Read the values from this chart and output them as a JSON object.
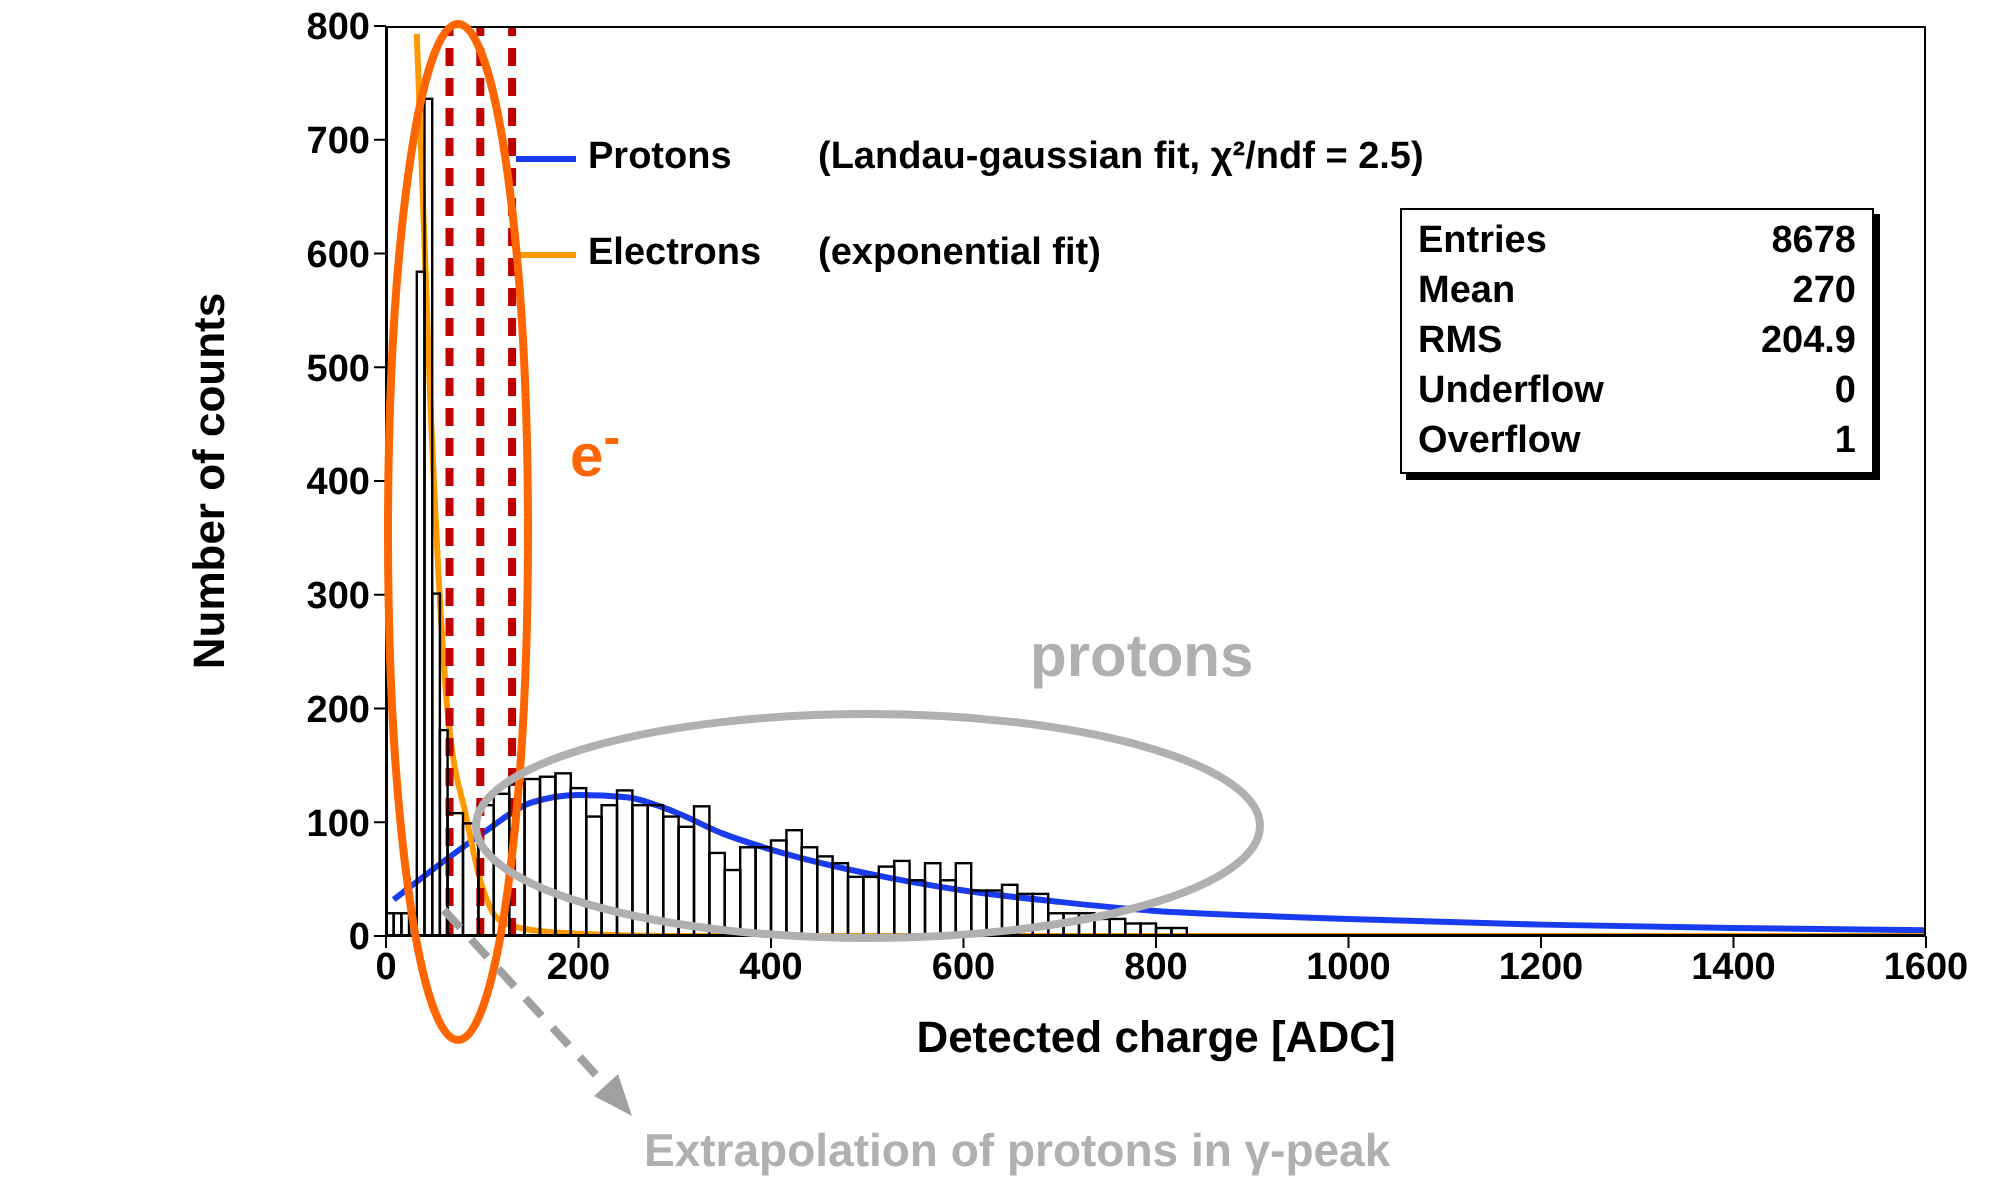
{
  "chart_data": {
    "type": "histogram",
    "xlabel": "Detected charge [ADC]",
    "ylabel": "Number of counts",
    "bins": [
      0,
      8,
      16,
      24,
      32,
      40,
      48,
      56,
      64,
      80,
      96,
      112,
      128,
      144,
      160,
      176,
      192,
      208,
      224,
      240,
      256,
      272,
      288,
      304,
      320,
      336,
      352,
      368,
      384,
      400,
      416,
      432,
      448,
      464,
      480,
      496,
      512,
      528,
      544,
      560,
      576,
      592,
      608,
      624,
      640,
      656,
      672,
      688,
      704,
      720,
      736,
      752,
      768,
      784,
      800,
      816,
      832
    ],
    "values": [
      20,
      20,
      20,
      20,
      584,
      736,
      301,
      181,
      108,
      99,
      115,
      125,
      134,
      138,
      140,
      143,
      130,
      105,
      115,
      128,
      115,
      115,
      105,
      96,
      114,
      73,
      58,
      78,
      78,
      84,
      93,
      78,
      70,
      64,
      52,
      52,
      61,
      66,
      49,
      64,
      49,
      64,
      40,
      40,
      45,
      37,
      37,
      20,
      20,
      20,
      15,
      15,
      11,
      11,
      7,
      7
    ],
    "color": "#000000",
    "series": [
      {
        "name": "Protons",
        "type": "line",
        "color": "#1a3cf0",
        "x": [
          8,
          100,
          150,
          200,
          250,
          300,
          350,
          400,
          500,
          600,
          700,
          800,
          900,
          1000,
          1200,
          1400,
          1600
        ],
        "values": [
          32,
          90,
          117,
          124,
          122,
          109,
          90,
          76,
          55,
          40,
          30,
          22,
          18,
          15,
          10,
          7,
          5
        ]
      },
      {
        "name": "Electrons",
        "type": "line",
        "color": "#ff9900",
        "x": [
          32,
          46,
          63,
          84,
          98,
          118,
          153,
          200,
          300,
          1600
        ],
        "values": [
          793,
          471,
          207,
          102,
          49,
          14,
          5,
          2,
          0,
          0
        ]
      }
    ],
    "xlim": [
      0,
      1600
    ],
    "xticks": [
      0,
      200,
      400,
      600,
      800,
      1000,
      1200,
      1400,
      1600
    ],
    "ylim": [
      0,
      800
    ],
    "yticks": [
      0,
      100,
      200,
      300,
      400,
      500,
      600,
      700,
      800
    ],
    "ref_lines": [
      {
        "axis": "x",
        "value": 66,
        "color": "#c00000",
        "line_style": "dashed"
      },
      {
        "axis": "x",
        "value": 98,
        "color": "#c00000",
        "line_style": "dashed"
      },
      {
        "axis": "x",
        "value": 131,
        "color": "#c00000",
        "line_style": "dashed"
      }
    ],
    "annotations": [
      "(Landau-gaussian fit, χ²/ndf = 2.5)",
      "(exponential fit)",
      "Entries 8678",
      "Mean 270",
      "RMS 204.9",
      "Underflow 0",
      "Overflow 1",
      "e$^{-}$",
      "protons",
      "Extrapolation of protons in γ-peak"
    ],
    "legend": "top left",
    "grid": false,
    "marker": "none",
    "line_style": "solid"
  }
}
